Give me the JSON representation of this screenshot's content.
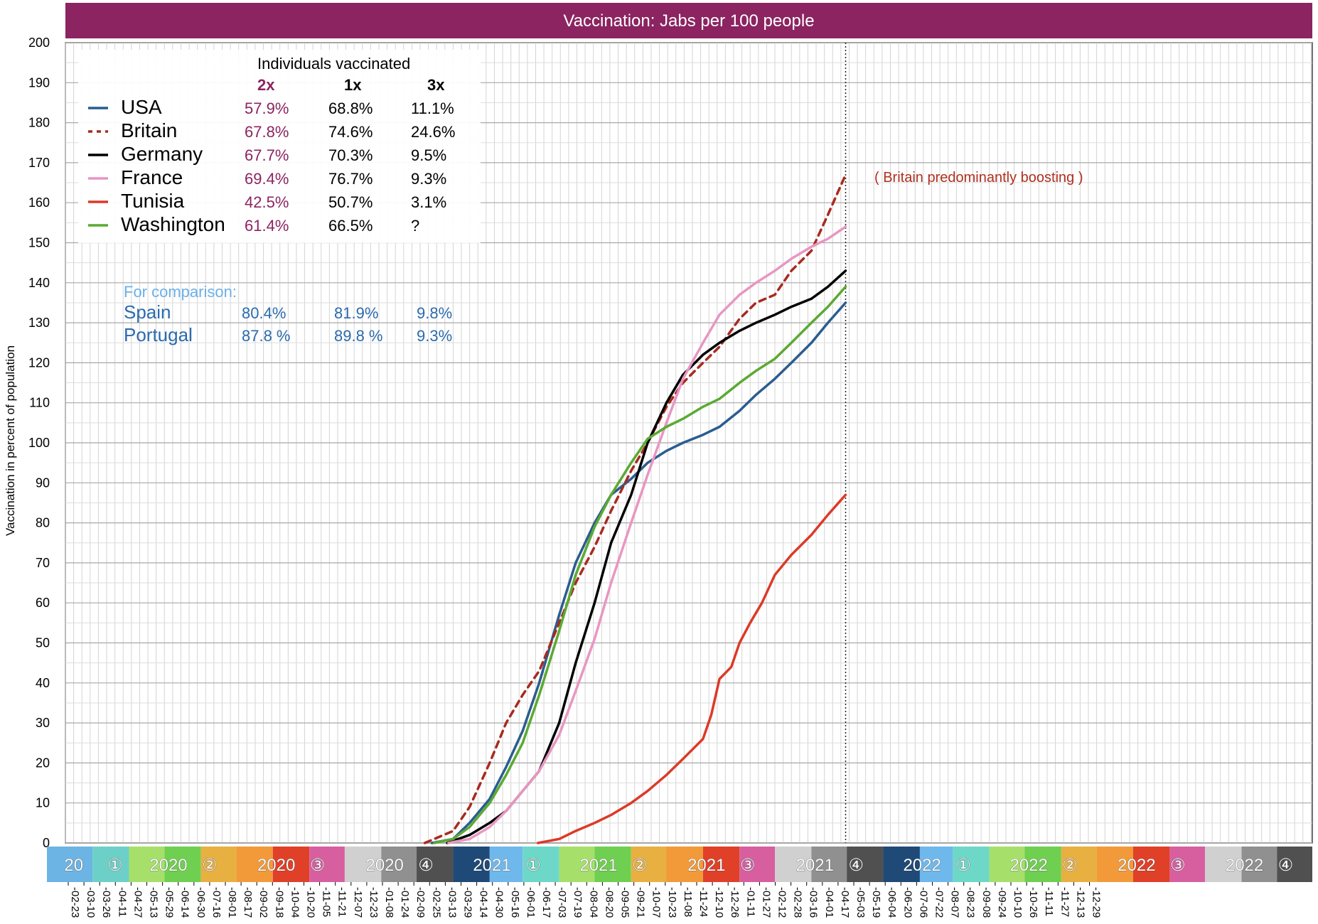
{
  "chart_data": {
    "type": "line",
    "title": "Vaccination: Jabs per 100 people",
    "xlabel": "",
    "ylabel": "Vaccination in percent of population",
    "ylim": [
      0,
      200
    ],
    "yticks": [
      0,
      10,
      20,
      30,
      40,
      50,
      60,
      70,
      80,
      90,
      100,
      110,
      120,
      130,
      140,
      150,
      160,
      170,
      180,
      190,
      200
    ],
    "xrange": [
      "2020-02-07",
      "2022-12-31"
    ],
    "grid": true,
    "current_date": "2021-11-30",
    "date_ticks": [
      "02-23",
      "03-10",
      "03-26",
      "04-11",
      "04-27",
      "05-13",
      "05-29",
      "06-14",
      "06-30",
      "07-16",
      "08-01",
      "08-17",
      "09-02",
      "09-18",
      "10-04",
      "10-20",
      "11-05",
      "11-21",
      "12-07",
      "12-23",
      "01-08",
      "01-24",
      "02-09",
      "02-25",
      "03-13",
      "03-29",
      "04-14",
      "04-30",
      "05-16",
      "06-01",
      "06-17",
      "07-03",
      "07-19",
      "08-04",
      "08-20",
      "09-05",
      "09-21",
      "10-07",
      "10-23",
      "11-08",
      "11-24",
      "12-10",
      "12-26",
      "01-11",
      "01-27",
      "02-12",
      "02-28",
      "03-16",
      "04-01",
      "04-17",
      "05-03",
      "05-19",
      "06-04",
      "06-20",
      "07-06",
      "07-22",
      "08-07",
      "08-23",
      "09-08",
      "09-24",
      "10-10",
      "10-26",
      "11-11",
      "11-27",
      "12-13",
      "12-29"
    ],
    "quarters": [
      {
        "label": "20",
        "num": "①",
        "colors": [
          "#6cb4e4",
          "#6dd0c8"
        ]
      },
      {
        "label": "2020",
        "num": "②",
        "colors": [
          "#a6e06a",
          "#6fcf50",
          "#e8b040"
        ]
      },
      {
        "label": "2020",
        "num": "③",
        "colors": [
          "#f29a3a",
          "#e04028",
          "#d75fa0"
        ]
      },
      {
        "label": "2020",
        "num": "④",
        "colors": [
          "#d0d0d0",
          "#909090",
          "#505050"
        ]
      },
      {
        "label": "2021",
        "num": "①",
        "colors": [
          "#1f4a78",
          "#6fb8ec",
          "#6dd8c8"
        ]
      },
      {
        "label": "2021",
        "num": "②",
        "colors": [
          "#a6e06a",
          "#6fcf50",
          "#e8b040"
        ]
      },
      {
        "label": "2021",
        "num": "③",
        "colors": [
          "#f29a3a",
          "#e04028",
          "#d75fa0"
        ]
      },
      {
        "label": "2021",
        "num": "④",
        "colors": [
          "#d0d0d0",
          "#909090",
          "#505050"
        ]
      },
      {
        "label": "2022",
        "num": "①",
        "colors": [
          "#1f4a78",
          "#6fb8ec",
          "#6dd8c8"
        ]
      },
      {
        "label": "2022",
        "num": "②",
        "colors": [
          "#a6e06a",
          "#6fcf50",
          "#e8b040"
        ]
      },
      {
        "label": "2022",
        "num": "③",
        "colors": [
          "#f29a3a",
          "#e04028",
          "#d75fa0"
        ]
      },
      {
        "label": "2022",
        "num": "④",
        "colors": [
          "#d0d0d0",
          "#909090",
          "#505050"
        ]
      }
    ],
    "series": [
      {
        "name": "USA",
        "color": "#2b5c8f",
        "dash": false,
        "width": 3.5,
        "points": [
          [
            "2020-12-14",
            0
          ],
          [
            "2021-01-01",
            1
          ],
          [
            "2021-01-15",
            5
          ],
          [
            "2021-02-01",
            11
          ],
          [
            "2021-02-15",
            19
          ],
          [
            "2021-03-01",
            28
          ],
          [
            "2021-03-15",
            40
          ],
          [
            "2021-04-01",
            57
          ],
          [
            "2021-04-15",
            70
          ],
          [
            "2021-05-01",
            80
          ],
          [
            "2021-05-15",
            87
          ],
          [
            "2021-06-01",
            91
          ],
          [
            "2021-06-15",
            95
          ],
          [
            "2021-07-01",
            98
          ],
          [
            "2021-07-15",
            100
          ],
          [
            "2021-08-01",
            102
          ],
          [
            "2021-08-15",
            104
          ],
          [
            "2021-09-01",
            108
          ],
          [
            "2021-09-15",
            112
          ],
          [
            "2021-10-01",
            116
          ],
          [
            "2021-10-15",
            120
          ],
          [
            "2021-11-01",
            125
          ],
          [
            "2021-11-15",
            130
          ],
          [
            "2021-11-30",
            135
          ]
        ]
      },
      {
        "name": "Britain",
        "color": "#a82a1f",
        "dash": true,
        "width": 3.5,
        "points": [
          [
            "2020-12-08",
            0
          ],
          [
            "2021-01-01",
            3
          ],
          [
            "2021-01-15",
            9
          ],
          [
            "2021-02-01",
            20
          ],
          [
            "2021-02-15",
            30
          ],
          [
            "2021-03-01",
            37
          ],
          [
            "2021-03-15",
            43
          ],
          [
            "2021-04-01",
            55
          ],
          [
            "2021-04-15",
            65
          ],
          [
            "2021-05-01",
            74
          ],
          [
            "2021-05-15",
            83
          ],
          [
            "2021-06-01",
            93
          ],
          [
            "2021-06-15",
            100
          ],
          [
            "2021-07-01",
            109
          ],
          [
            "2021-07-15",
            115
          ],
          [
            "2021-08-01",
            120
          ],
          [
            "2021-08-15",
            124
          ],
          [
            "2021-09-01",
            131
          ],
          [
            "2021-09-15",
            135
          ],
          [
            "2021-10-01",
            137
          ],
          [
            "2021-10-15",
            143
          ],
          [
            "2021-11-01",
            148
          ],
          [
            "2021-11-15",
            157
          ],
          [
            "2021-11-30",
            167
          ]
        ]
      },
      {
        "name": "Germany",
        "color": "#000000",
        "dash": false,
        "width": 3.5,
        "points": [
          [
            "2020-12-27",
            0
          ],
          [
            "2021-01-15",
            2
          ],
          [
            "2021-02-01",
            5
          ],
          [
            "2021-02-15",
            8
          ],
          [
            "2021-03-01",
            13
          ],
          [
            "2021-03-15",
            18
          ],
          [
            "2021-04-01",
            30
          ],
          [
            "2021-04-15",
            45
          ],
          [
            "2021-05-01",
            60
          ],
          [
            "2021-05-15",
            75
          ],
          [
            "2021-06-01",
            87
          ],
          [
            "2021-06-15",
            100
          ],
          [
            "2021-07-01",
            110
          ],
          [
            "2021-07-15",
            117
          ],
          [
            "2021-08-01",
            122
          ],
          [
            "2021-08-15",
            125
          ],
          [
            "2021-09-01",
            128
          ],
          [
            "2021-09-15",
            130
          ],
          [
            "2021-10-01",
            132
          ],
          [
            "2021-10-15",
            134
          ],
          [
            "2021-11-01",
            136
          ],
          [
            "2021-11-15",
            139
          ],
          [
            "2021-11-30",
            143
          ]
        ]
      },
      {
        "name": "France",
        "color": "#e896c2",
        "dash": false,
        "width": 3.5,
        "points": [
          [
            "2020-12-28",
            0
          ],
          [
            "2021-01-15",
            1
          ],
          [
            "2021-02-01",
            4
          ],
          [
            "2021-02-15",
            8
          ],
          [
            "2021-03-01",
            13
          ],
          [
            "2021-03-15",
            18
          ],
          [
            "2021-04-01",
            27
          ],
          [
            "2021-04-15",
            38
          ],
          [
            "2021-05-01",
            51
          ],
          [
            "2021-05-15",
            65
          ],
          [
            "2021-06-01",
            80
          ],
          [
            "2021-06-15",
            92
          ],
          [
            "2021-07-01",
            105
          ],
          [
            "2021-07-15",
            116
          ],
          [
            "2021-08-01",
            125
          ],
          [
            "2021-08-15",
            132
          ],
          [
            "2021-09-01",
            137
          ],
          [
            "2021-09-15",
            140
          ],
          [
            "2021-10-01",
            143
          ],
          [
            "2021-10-15",
            146
          ],
          [
            "2021-11-01",
            149
          ],
          [
            "2021-11-15",
            151
          ],
          [
            "2021-11-30",
            154
          ]
        ]
      },
      {
        "name": "Tunisia",
        "color": "#dc3a28",
        "dash": false,
        "width": 3.5,
        "points": [
          [
            "2021-03-14",
            0
          ],
          [
            "2021-04-01",
            1
          ],
          [
            "2021-04-15",
            3
          ],
          [
            "2021-05-01",
            5
          ],
          [
            "2021-05-15",
            7
          ],
          [
            "2021-06-01",
            10
          ],
          [
            "2021-06-15",
            13
          ],
          [
            "2021-07-01",
            17
          ],
          [
            "2021-07-15",
            21
          ],
          [
            "2021-08-01",
            26
          ],
          [
            "2021-08-08",
            32
          ],
          [
            "2021-08-15",
            41
          ],
          [
            "2021-08-25",
            44
          ],
          [
            "2021-09-01",
            50
          ],
          [
            "2021-09-10",
            55
          ],
          [
            "2021-09-20",
            60
          ],
          [
            "2021-10-01",
            67
          ],
          [
            "2021-10-15",
            72
          ],
          [
            "2021-11-01",
            77
          ],
          [
            "2021-11-15",
            82
          ],
          [
            "2021-11-30",
            87
          ]
        ]
      },
      {
        "name": "Washington",
        "color": "#5aaa32",
        "dash": false,
        "width": 3.5,
        "points": [
          [
            "2020-12-16",
            0
          ],
          [
            "2021-01-01",
            1
          ],
          [
            "2021-01-15",
            4
          ],
          [
            "2021-02-01",
            10
          ],
          [
            "2021-02-15",
            17
          ],
          [
            "2021-03-01",
            25
          ],
          [
            "2021-03-15",
            37
          ],
          [
            "2021-04-01",
            53
          ],
          [
            "2021-04-15",
            67
          ],
          [
            "2021-05-01",
            79
          ],
          [
            "2021-05-15",
            87
          ],
          [
            "2021-06-01",
            95
          ],
          [
            "2021-06-15",
            101
          ],
          [
            "2021-07-01",
            104
          ],
          [
            "2021-07-15",
            106
          ],
          [
            "2021-08-01",
            109
          ],
          [
            "2021-08-15",
            111
          ],
          [
            "2021-09-01",
            115
          ],
          [
            "2021-09-15",
            118
          ],
          [
            "2021-10-01",
            121
          ],
          [
            "2021-10-15",
            125
          ],
          [
            "2021-11-01",
            130
          ],
          [
            "2021-11-15",
            134
          ],
          [
            "2021-11-30",
            139
          ]
        ]
      }
    ]
  },
  "legend": {
    "header": "Individuals vaccinated",
    "columns": [
      "2x",
      "1x",
      "3x"
    ],
    "rows": [
      {
        "name": "USA",
        "v2": "57.9%",
        "v1": "68.8%",
        "v3": "11.1%"
      },
      {
        "name": "Britain",
        "v2": "67.8%",
        "v1": "74.6%",
        "v3": "24.6%"
      },
      {
        "name": "Germany",
        "v2": "67.7%",
        "v1": "70.3%",
        "v3": "9.5%"
      },
      {
        "name": "France",
        "v2": "69.4%",
        "v1": "76.7%",
        "v3": "9.3%"
      },
      {
        "name": "Tunisia",
        "v2": "42.5%",
        "v1": "50.7%",
        "v3": "3.1%"
      },
      {
        "name": "Washington",
        "v2": "61.4%",
        "v1": "66.5%",
        "v3": "?"
      }
    ]
  },
  "comparison": {
    "header": "For comparison:",
    "rows": [
      {
        "name": "Spain",
        "v2": "80.4%",
        "v1": "81.9%",
        "v3": "9.8%"
      },
      {
        "name": "Portugal",
        "v2": "87.8 %",
        "v1": "89.8 %",
        "v3": "9.3%"
      }
    ]
  },
  "annotation": "( Britain predominantly boosting )",
  "colors": {
    "title_bg": "#8b2461",
    "col_2x": "#8b2461",
    "comparison_header": "#6ab0e8",
    "comparison_rows": "#2b6aad",
    "annotation": "#b03020"
  }
}
